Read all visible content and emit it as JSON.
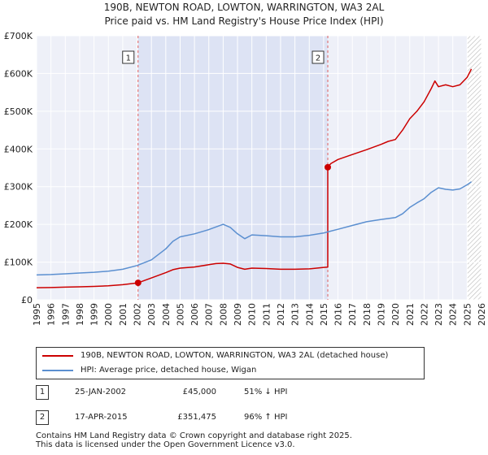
{
  "chart_data": {
    "type": "line",
    "title": "190B, NEWTON ROAD, LOWTON, WARRINGTON, WA3 2AL",
    "subtitle": "Price paid vs. HM Land Registry's House Price Index (HPI)",
    "xlim": [
      1995,
      2026
    ],
    "ylim": [
      0,
      700000
    ],
    "x_ticks": [
      "1995",
      "1996",
      "1997",
      "1998",
      "1999",
      "2000",
      "2001",
      "2002",
      "2003",
      "2004",
      "2005",
      "2006",
      "2007",
      "2008",
      "2009",
      "2010",
      "2011",
      "2012",
      "2013",
      "2014",
      "2015",
      "2016",
      "2017",
      "2018",
      "2019",
      "2020",
      "2021",
      "2022",
      "2023",
      "2024",
      "2025",
      "2026"
    ],
    "y_ticks": [
      {
        "value": 0,
        "label": "£0"
      },
      {
        "value": 100000,
        "label": "£100K"
      },
      {
        "value": 200000,
        "label": "£200K"
      },
      {
        "value": 300000,
        "label": "£300K"
      },
      {
        "value": 400000,
        "label": "£400K"
      },
      {
        "value": 500000,
        "label": "£500K"
      },
      {
        "value": 600000,
        "label": "£600K"
      },
      {
        "value": 700000,
        "label": "£700K"
      }
    ],
    "series": [
      {
        "name": "190B, NEWTON ROAD, LOWTON, WARRINGTON, WA3 2AL (detached house)",
        "color": "#cc0000",
        "points": [
          [
            1995.0,
            32000
          ],
          [
            1996.0,
            32500
          ],
          [
            1997.0,
            33500
          ],
          [
            1998.0,
            34500
          ],
          [
            1999.0,
            35500
          ],
          [
            2000.0,
            37000
          ],
          [
            2001.0,
            40000
          ],
          [
            2002.07,
            45000
          ],
          [
            2002.5,
            51000
          ],
          [
            2003.0,
            58000
          ],
          [
            2004.0,
            72000
          ],
          [
            2004.5,
            80000
          ],
          [
            2005.0,
            84000
          ],
          [
            2006.0,
            87000
          ],
          [
            2007.0,
            93000
          ],
          [
            2007.5,
            96000
          ],
          [
            2008.0,
            97000
          ],
          [
            2008.5,
            95000
          ],
          [
            2009.0,
            86000
          ],
          [
            2009.5,
            81000
          ],
          [
            2010.0,
            84000
          ],
          [
            2011.0,
            83000
          ],
          [
            2012.0,
            81000
          ],
          [
            2013.0,
            81000
          ],
          [
            2014.0,
            82000
          ],
          [
            2015.0,
            86000
          ],
          [
            2015.29,
            86500
          ],
          [
            2015.29,
            351475
          ],
          [
            2015.5,
            361000
          ],
          [
            2016.0,
            372000
          ],
          [
            2017.0,
            385000
          ],
          [
            2018.0,
            398000
          ],
          [
            2019.0,
            412000
          ],
          [
            2019.5,
            420000
          ],
          [
            2020.0,
            425000
          ],
          [
            2020.5,
            450000
          ],
          [
            2021.0,
            480000
          ],
          [
            2021.5,
            500000
          ],
          [
            2022.0,
            525000
          ],
          [
            2022.5,
            560000
          ],
          [
            2022.75,
            580000
          ],
          [
            2023.0,
            565000
          ],
          [
            2023.5,
            570000
          ],
          [
            2024.0,
            565000
          ],
          [
            2024.5,
            570000
          ],
          [
            2025.0,
            590000
          ],
          [
            2025.3,
            612000
          ]
        ]
      },
      {
        "name": "HPI: Average price, detached house, Wigan",
        "color": "#5b8fd0",
        "points": [
          [
            1995.0,
            66000
          ],
          [
            1996.0,
            67000
          ],
          [
            1997.0,
            69000
          ],
          [
            1998.0,
            71000
          ],
          [
            1999.0,
            73000
          ],
          [
            2000.0,
            76000
          ],
          [
            2001.0,
            81000
          ],
          [
            2002.0,
            91000
          ],
          [
            2003.0,
            106000
          ],
          [
            2004.0,
            135000
          ],
          [
            2004.5,
            155000
          ],
          [
            2005.0,
            167000
          ],
          [
            2006.0,
            175000
          ],
          [
            2007.0,
            186000
          ],
          [
            2008.0,
            200000
          ],
          [
            2008.5,
            192000
          ],
          [
            2009.0,
            175000
          ],
          [
            2009.5,
            162000
          ],
          [
            2010.0,
            172000
          ],
          [
            2011.0,
            170000
          ],
          [
            2012.0,
            167000
          ],
          [
            2013.0,
            167000
          ],
          [
            2014.0,
            171000
          ],
          [
            2015.0,
            177000
          ],
          [
            2015.29,
            180000
          ],
          [
            2016.0,
            187000
          ],
          [
            2017.0,
            197000
          ],
          [
            2018.0,
            207000
          ],
          [
            2019.0,
            213000
          ],
          [
            2020.0,
            218000
          ],
          [
            2020.5,
            228000
          ],
          [
            2021.0,
            245000
          ],
          [
            2021.5,
            257000
          ],
          [
            2022.0,
            268000
          ],
          [
            2022.5,
            285000
          ],
          [
            2023.0,
            297000
          ],
          [
            2023.5,
            293000
          ],
          [
            2024.0,
            291000
          ],
          [
            2024.5,
            294000
          ],
          [
            2025.0,
            305000
          ],
          [
            2025.3,
            313000
          ]
        ]
      }
    ],
    "annotations": [
      {
        "label": "1",
        "x": 2002.07
      },
      {
        "label": "2",
        "x": 2015.29
      }
    ],
    "sales": [
      {
        "x": 2002.07,
        "y": 45000
      },
      {
        "x": 2015.29,
        "y": 351475
      }
    ],
    "hatch_from": 2025.0
  },
  "legend": {
    "items": [
      {
        "label": "190B, NEWTON ROAD, LOWTON, WARRINGTON, WA3 2AL (detached house)",
        "color": "#cc0000"
      },
      {
        "label": "HPI: Average price, detached house, Wigan",
        "color": "#5b8fd0"
      }
    ]
  },
  "table": {
    "rows": [
      {
        "num": "1",
        "date": "25-JAN-2002",
        "price": "£45,000",
        "hpi": "51% ↓ HPI"
      },
      {
        "num": "2",
        "date": "17-APR-2015",
        "price": "£351,475",
        "hpi": "96% ↑ HPI"
      }
    ]
  },
  "footer": {
    "line1": "Contains HM Land Registry data © Crown copyright and database right 2025.",
    "line2": "This data is licensed under the Open Government Licence v3.0."
  }
}
